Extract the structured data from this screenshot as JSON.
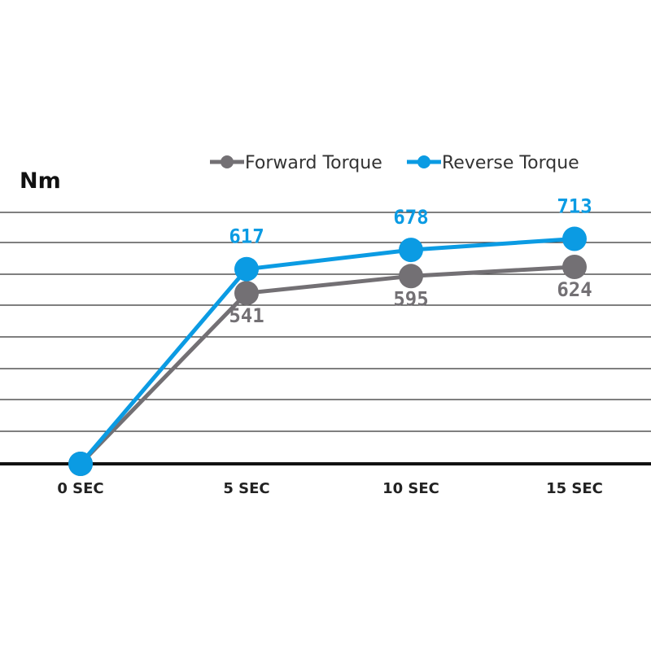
{
  "chart_data": {
    "type": "line",
    "ylabel": "Nm",
    "xlabel": "",
    "categories": [
      "0 SEC",
      "5 SEC",
      "10 SEC",
      "15 SEC"
    ],
    "ylim": [
      0,
      1000
    ],
    "grid": true,
    "legend_position": "top-right",
    "series": [
      {
        "name": "Forward Torque",
        "values": [
          0,
          541,
          595,
          624
        ],
        "labels": [
          "",
          "541",
          "595",
          "624"
        ],
        "label_position": "below",
        "color": "#737074"
      },
      {
        "name": "Reverse Torque",
        "values": [
          0,
          617,
          678,
          713
        ],
        "labels": [
          "",
          "617",
          "678",
          "713"
        ],
        "label_position": "above",
        "color": "#0b9be3"
      }
    ],
    "colors": {
      "grid": "#333333",
      "axis": "#111111"
    }
  }
}
